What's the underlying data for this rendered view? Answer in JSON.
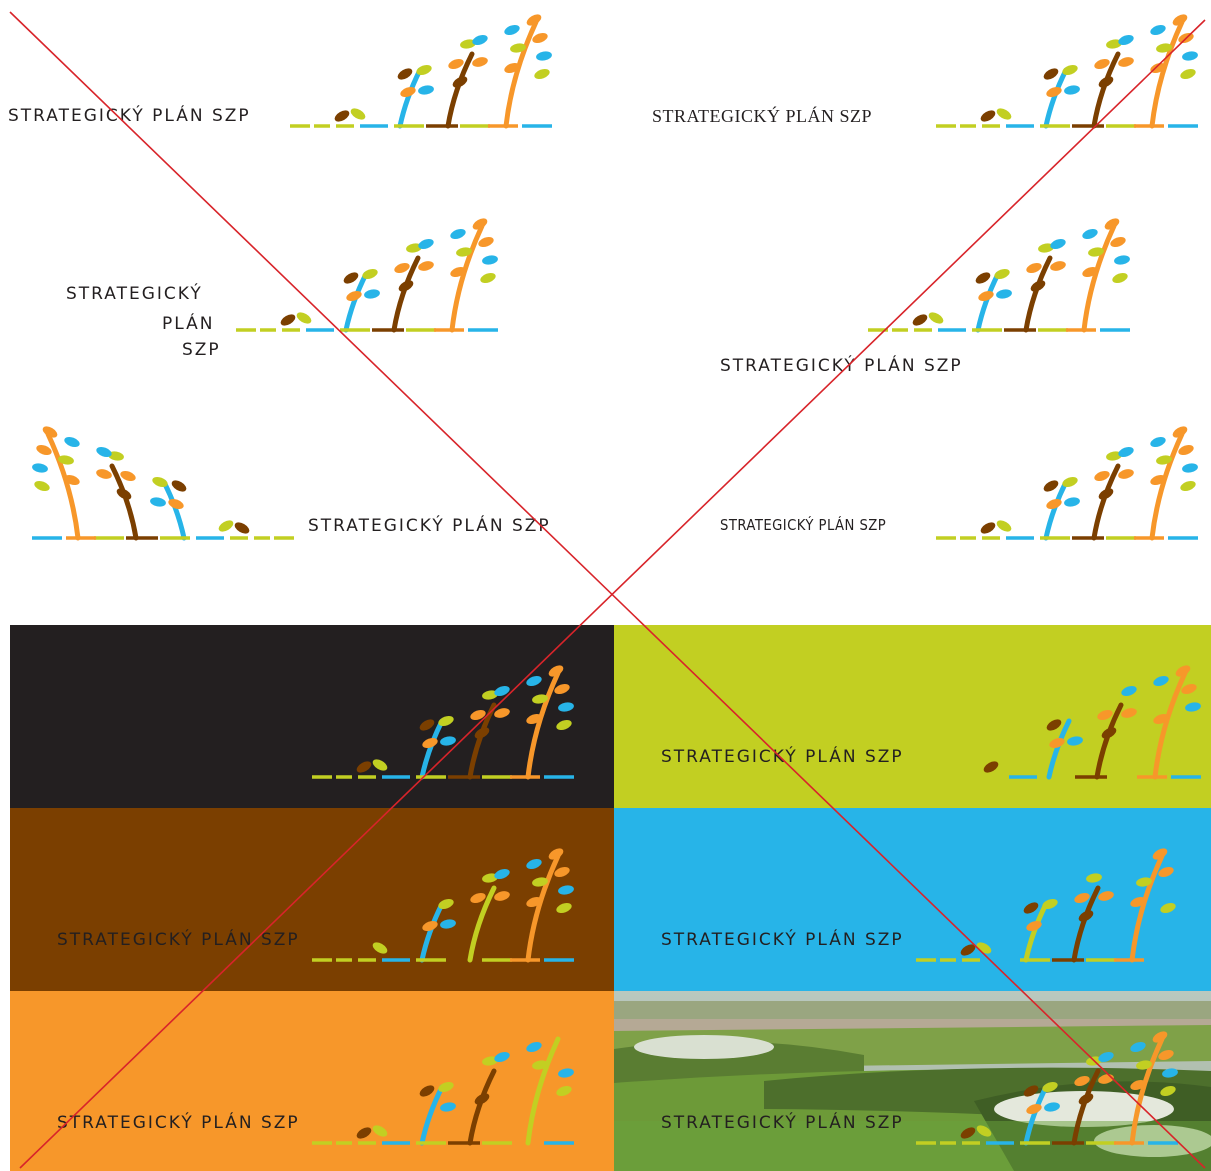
{
  "wordmark": {
    "full": "STRATEGICKÝ PLÁN SZP",
    "line1": "STRATEGICKÝ",
    "line2": "PLÁN",
    "line3": "SZP"
  },
  "colors": {
    "green": "#c2cf22",
    "blue": "#27b4e8",
    "orange": "#f7972a",
    "brown": "#7b3f00",
    "black": "#231f20",
    "cross": "#d8242a"
  },
  "panels": [
    {
      "name": "panel-black",
      "background": "#231f20"
    },
    {
      "name": "panel-green",
      "background": "#c2cf22"
    },
    {
      "name": "panel-brown",
      "background": "#7b3f00"
    },
    {
      "name": "panel-blue",
      "background": "#27b4e8"
    },
    {
      "name": "panel-orange",
      "background": "#f7972a"
    },
    {
      "name": "panel-photo",
      "background": "landscape-photo"
    }
  ],
  "icons": {
    "logo_mark": "sprouting-plants-icon",
    "cross": "incorrect-usage-cross-icon"
  }
}
